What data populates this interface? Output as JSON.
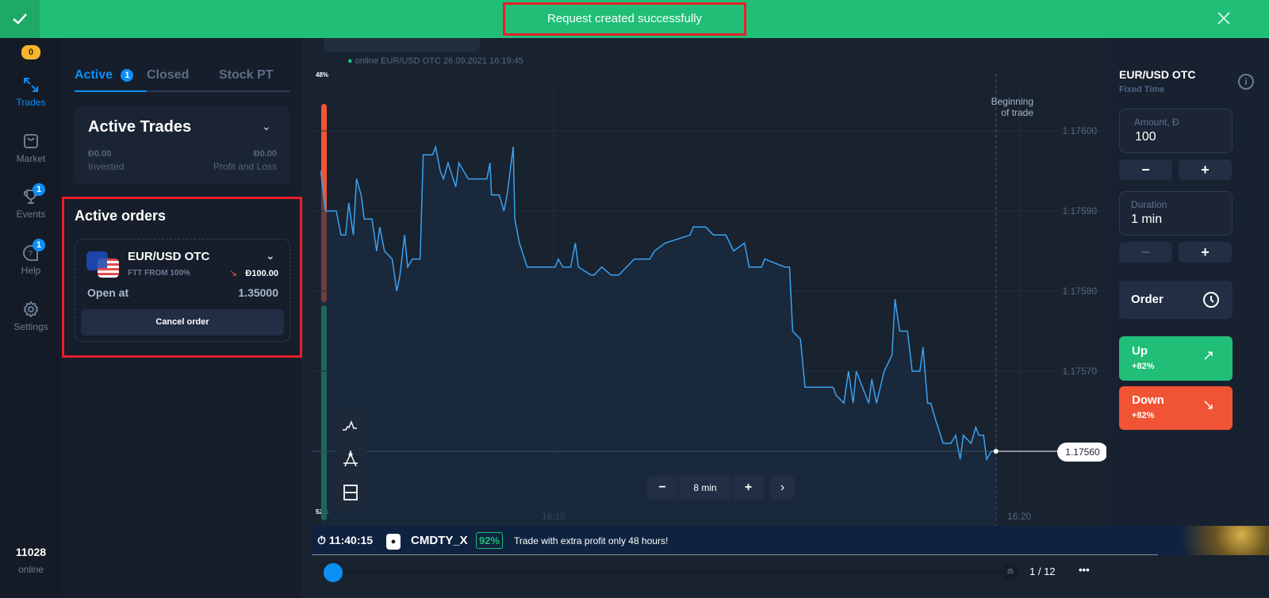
{
  "notification": {
    "message": "Request created successfully",
    "status_color": "#20be77"
  },
  "sidebar": {
    "balance_badge": "0",
    "items": [
      {
        "label": "Trades",
        "icon": "trades-arrows-icon",
        "active": true
      },
      {
        "label": "Market",
        "icon": "shopping-bag-icon"
      },
      {
        "label": "Events",
        "icon": "trophy-icon",
        "badge": "1"
      },
      {
        "label": "Help",
        "icon": "help-bubble-icon",
        "badge": "1"
      },
      {
        "label": "Settings",
        "icon": "gear-icon"
      }
    ],
    "online_count": "11028",
    "online_label": "online"
  },
  "trades_panel": {
    "tabs": [
      {
        "label": "Active",
        "badge": "1",
        "active": true
      },
      {
        "label": "Closed"
      },
      {
        "label": "Stock PT"
      }
    ],
    "active_trades": {
      "title": "Active Trades",
      "invested_value": "Đ0.00",
      "invested_label": "Invested",
      "pnl_value": "Đ0.00",
      "pnl_label": "Profit and Loss"
    },
    "active_orders": {
      "title": "Active orders",
      "order": {
        "asset": "EUR/USD OTC",
        "subtitle": "FTT FROM 100%",
        "amount": "Đ100.00",
        "direction": "down",
        "open_label": "Open at",
        "open_value": "1.35000",
        "cancel_label": "Cancel order"
      }
    }
  },
  "chart": {
    "status": "online EUR/USD OTC  26.09.2021 16:19:45",
    "sentiment_up": "48%",
    "sentiment_down": "52%",
    "sentiment_up_fraction": 0.48,
    "beginning_label_1": "Beginning",
    "beginning_label_2": "of trade",
    "current_price": "1.17560",
    "zoom_label": "8 min",
    "zoom_minus": "−",
    "zoom_plus": "+",
    "tools": [
      "indicator-icon",
      "drawing-compass-icon",
      "layout-split-icon"
    ]
  },
  "chart_data": {
    "type": "line",
    "x_ticks": [
      "16:15",
      "16:20"
    ],
    "y_ticks": [
      "1.17600",
      "1.17590",
      "1.17580",
      "1.17570"
    ],
    "color": "#3aa2f0",
    "points": [
      [
        "16:12:30",
        1.17595
      ],
      [
        "16:12:33",
        1.1759
      ],
      [
        "16:12:40",
        1.1759
      ],
      [
        "16:12:43",
        1.17587
      ],
      [
        "16:12:46",
        1.17587
      ],
      [
        "16:12:48",
        1.17591
      ],
      [
        "16:12:51",
        1.17587
      ],
      [
        "16:12:53",
        1.17594
      ],
      [
        "16:12:56",
        1.17592
      ],
      [
        "16:12:58",
        1.17589
      ],
      [
        "16:13:03",
        1.17589
      ],
      [
        "16:13:06",
        1.17585
      ],
      [
        "16:13:08",
        1.17588
      ],
      [
        "16:13:11",
        1.17585
      ],
      [
        "16:13:16",
        1.17584
      ],
      [
        "16:13:19",
        1.1758
      ],
      [
        "16:13:21",
        1.17582
      ],
      [
        "16:13:24",
        1.17587
      ],
      [
        "16:13:26",
        1.17583
      ],
      [
        "16:13:29",
        1.17584
      ],
      [
        "16:13:34",
        1.17584
      ],
      [
        "16:13:36",
        1.17597
      ],
      [
        "16:13:42",
        1.17597
      ],
      [
        "16:13:44",
        1.17598
      ],
      [
        "16:13:47",
        1.17595
      ],
      [
        "16:13:49",
        1.17594
      ],
      [
        "16:13:52",
        1.17596
      ],
      [
        "16:13:57",
        1.17593
      ],
      [
        "16:13:59",
        1.17596
      ],
      [
        "16:14:05",
        1.17594
      ],
      [
        "16:14:17",
        1.17594
      ],
      [
        "16:14:19",
        1.17596
      ],
      [
        "16:14:20",
        1.17592
      ],
      [
        "16:14:25",
        1.17592
      ],
      [
        "16:14:28",
        1.1759
      ],
      [
        "16:14:30",
        1.17592
      ],
      [
        "16:14:34",
        1.17598
      ],
      [
        "16:14:35",
        1.17589
      ],
      [
        "16:14:38",
        1.17586
      ],
      [
        "16:14:43",
        1.17583
      ],
      [
        "16:15:01",
        1.17583
      ],
      [
        "16:15:03",
        1.17584
      ],
      [
        "16:15:06",
        1.17583
      ],
      [
        "16:15:11",
        1.17583
      ],
      [
        "16:15:14",
        1.17586
      ],
      [
        "16:15:16",
        1.17583
      ],
      [
        "16:15:24",
        1.17582
      ],
      [
        "16:15:26",
        1.17582
      ],
      [
        "16:15:31",
        1.17583
      ],
      [
        "16:15:37",
        1.17582
      ],
      [
        "16:15:42",
        1.17582
      ],
      [
        "16:15:52",
        1.17584
      ],
      [
        "16:16:02",
        1.17584
      ],
      [
        "16:16:05",
        1.17585
      ],
      [
        "16:16:12",
        1.17586
      ],
      [
        "16:16:28",
        1.17587
      ],
      [
        "16:16:30",
        1.17588
      ],
      [
        "16:16:38",
        1.17588
      ],
      [
        "16:16:43",
        1.17587
      ],
      [
        "16:16:51",
        1.17587
      ],
      [
        "16:16:56",
        1.17585
      ],
      [
        "16:17:03",
        1.17586
      ],
      [
        "16:17:06",
        1.17583
      ],
      [
        "16:17:14",
        1.17583
      ],
      [
        "16:17:16",
        1.17584
      ],
      [
        "16:17:29",
        1.17583
      ],
      [
        "16:17:32",
        1.17583
      ],
      [
        "16:17:34",
        1.17575
      ],
      [
        "16:17:39",
        1.17574
      ],
      [
        "16:17:42",
        1.17568
      ],
      [
        "16:18:00",
        1.17568
      ],
      [
        "16:18:02",
        1.17567
      ],
      [
        "16:18:07",
        1.17566
      ],
      [
        "16:18:10",
        1.1757
      ],
      [
        "16:18:13",
        1.17566
      ],
      [
        "16:18:15",
        1.1757
      ],
      [
        "16:18:23",
        1.17566
      ],
      [
        "16:18:25",
        1.17569
      ],
      [
        "16:18:28",
        1.17566
      ],
      [
        "16:18:33",
        1.1757
      ],
      [
        "16:18:38",
        1.17572
      ],
      [
        "16:18:40",
        1.17579
      ],
      [
        "16:18:43",
        1.17575
      ],
      [
        "16:18:46",
        1.17575
      ],
      [
        "16:18:48",
        1.17575
      ],
      [
        "16:18:51",
        1.1757
      ],
      [
        "16:18:56",
        1.1757
      ],
      [
        "16:18:58",
        1.17573
      ],
      [
        "16:19:01",
        1.17566
      ],
      [
        "16:19:03",
        1.17566
      ],
      [
        "16:19:06",
        1.17564
      ],
      [
        "16:19:11",
        1.17561
      ],
      [
        "16:19:16",
        1.17561
      ],
      [
        "16:19:19",
        1.17562
      ],
      [
        "16:19:22",
        1.17559
      ],
      [
        "16:19:24",
        1.17562
      ],
      [
        "16:19:29",
        1.17561
      ],
      [
        "16:19:32",
        1.17563
      ],
      [
        "16:19:34",
        1.17562
      ],
      [
        "16:19:37",
        1.17562
      ],
      [
        "16:19:39",
        1.17559
      ],
      [
        "16:19:42",
        1.1756
      ],
      [
        "16:19:45",
        1.1756
      ]
    ]
  },
  "right_panel": {
    "asset": "EUR/USD OTC",
    "mode": "Fixed Time",
    "amount_label": "Amount, Đ",
    "amount_value": "100",
    "duration_label": "Duration",
    "duration_value": "1 min",
    "minus": "−",
    "plus": "+",
    "order_label": "Order",
    "up_label": "Up",
    "up_payout": "+82%",
    "up_color": "#20be77",
    "down_label": "Down",
    "down_payout": "+82%",
    "down_color": "#f15434"
  },
  "ticker": {
    "time": "11:40:15",
    "asset": "CMDTY_X",
    "payout": "92%",
    "message": "Trade with extra profit only 48 hours!"
  },
  "bottom_bar": {
    "page": "1 / 12",
    "more": "•••"
  }
}
